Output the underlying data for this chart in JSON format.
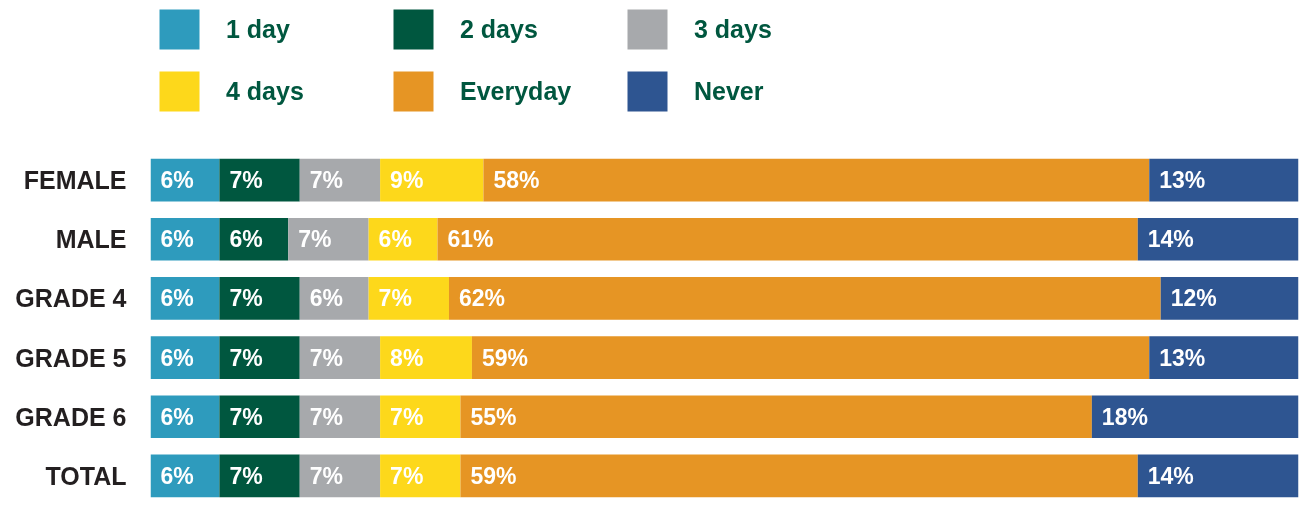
{
  "chart_data": {
    "type": "bar",
    "orientation": "horizontal",
    "stacked": true,
    "legend": "top left",
    "tick_labels": "y",
    "xlim": [
      0,
      100
    ],
    "categories": [
      "FEMALE",
      "MALE",
      "GRADE 4",
      "GRADE 5",
      "GRADE 6",
      "TOTAL"
    ],
    "series": [
      {
        "name": "1 day",
        "color": "#2e9bbd",
        "values": [
          6,
          6,
          6,
          6,
          6,
          6
        ],
        "value_labels": [
          "6%",
          "6%",
          "6%",
          "6%",
          "6%",
          "6%"
        ]
      },
      {
        "name": "2 days",
        "color": "#00573f",
        "values": [
          7,
          6,
          7,
          7,
          7,
          7
        ],
        "value_labels": [
          "7%",
          "6%",
          "7%",
          "7%",
          "7%",
          "7%"
        ]
      },
      {
        "name": "3 days",
        "color": "#a7a9ac",
        "values": [
          7,
          7,
          6,
          7,
          7,
          7
        ],
        "value_labels": [
          "7%",
          "7%",
          "6%",
          "7%",
          "7%",
          "7%"
        ]
      },
      {
        "name": "4 days",
        "color": "#fdd81b",
        "values": [
          9,
          6,
          7,
          8,
          7,
          7
        ],
        "value_labels": [
          "9%",
          "6%",
          "7%",
          "8%",
          "7%",
          "7%"
        ]
      },
      {
        "name": "Everyday",
        "color": "#e69524",
        "values": [
          58,
          61,
          62,
          59,
          55,
          59
        ],
        "value_labels": [
          "58%",
          "61%",
          "62%",
          "59%",
          "55%",
          "59%"
        ]
      },
      {
        "name": "Never",
        "color": "#2e5591",
        "values": [
          13,
          14,
          12,
          13,
          18,
          14
        ],
        "value_labels": [
          "13%",
          "14%",
          "12%",
          "13%",
          "18%",
          "14%"
        ]
      }
    ]
  }
}
